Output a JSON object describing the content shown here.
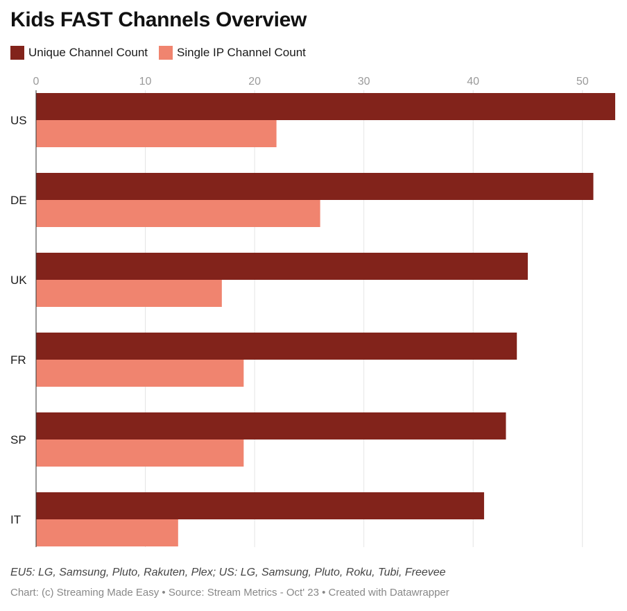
{
  "chart_data": {
    "type": "bar",
    "orientation": "horizontal",
    "title": "Kids FAST Channels Overview",
    "categories": [
      "US",
      "DE",
      "UK",
      "FR",
      "SP",
      "IT"
    ],
    "series": [
      {
        "name": "Unique Channel Count",
        "color": "#82231b",
        "values": [
          53,
          51,
          45,
          44,
          43,
          41
        ]
      },
      {
        "name": "Single IP Channel Count",
        "color": "#f0846f",
        "values": [
          22,
          26,
          17,
          19,
          19,
          13
        ]
      }
    ],
    "xlim": [
      0,
      53
    ],
    "xticks": [
      0,
      10,
      20,
      30,
      40,
      50
    ],
    "legend_position": "top-left",
    "grid": true
  },
  "footer": {
    "notes": "EU5: LG, Samsung, Pluto, Rakuten, Plex; US: LG, Samsung, Pluto, Roku, Tubi, Freevee",
    "credit": "Chart: (c) Streaming Made Easy • Source: Stream Metrics - Oct' 23 • Created with Datawrapper"
  }
}
